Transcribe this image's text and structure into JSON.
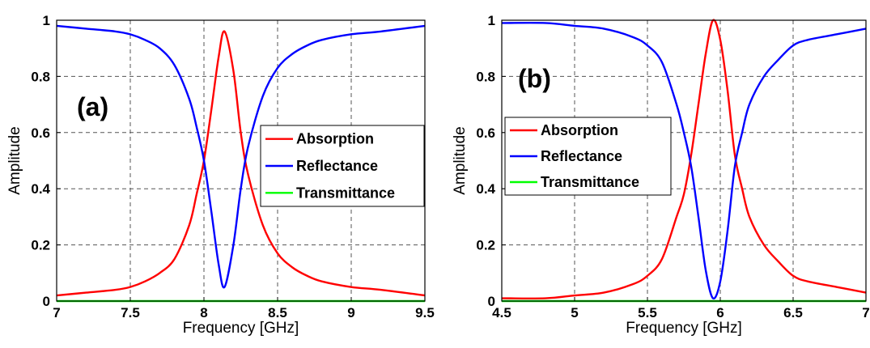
{
  "chart_data": [
    {
      "type": "line",
      "panel_label": "(a)",
      "xlabel": "Frequency [GHz]",
      "ylabel": "Amplitude",
      "xlim": [
        7,
        9.5
      ],
      "ylim": [
        0,
        1
      ],
      "xticks": [
        "7",
        "7.5",
        "8",
        "8.5",
        "9",
        "9.5"
      ],
      "yticks": [
        "0",
        "0.2",
        "0.4",
        "0.6",
        "0.8",
        "1"
      ],
      "grid": true,
      "legend_position": "center-right",
      "series": [
        {
          "name": "Absorption",
          "color": "#ff0000",
          "x": [
            7.0,
            7.2,
            7.4,
            7.5,
            7.6,
            7.7,
            7.8,
            7.9,
            7.95,
            8.0,
            8.05,
            8.1,
            8.14,
            8.2,
            8.25,
            8.3,
            8.4,
            8.5,
            8.6,
            8.7,
            8.8,
            9.0,
            9.2,
            9.5
          ],
          "y": [
            0.02,
            0.03,
            0.04,
            0.05,
            0.07,
            0.1,
            0.15,
            0.27,
            0.38,
            0.5,
            0.68,
            0.87,
            0.96,
            0.82,
            0.6,
            0.45,
            0.27,
            0.17,
            0.12,
            0.09,
            0.07,
            0.05,
            0.04,
            0.02
          ]
        },
        {
          "name": "Reflectance",
          "color": "#0000ff",
          "x": [
            7.0,
            7.2,
            7.4,
            7.5,
            7.6,
            7.7,
            7.8,
            7.9,
            7.95,
            8.0,
            8.05,
            8.1,
            8.14,
            8.2,
            8.25,
            8.3,
            8.4,
            8.5,
            8.6,
            8.7,
            8.8,
            9.0,
            9.2,
            9.5
          ],
          "y": [
            0.98,
            0.97,
            0.96,
            0.95,
            0.93,
            0.9,
            0.84,
            0.72,
            0.62,
            0.5,
            0.32,
            0.13,
            0.05,
            0.2,
            0.4,
            0.55,
            0.73,
            0.83,
            0.88,
            0.91,
            0.93,
            0.95,
            0.96,
            0.98
          ]
        },
        {
          "name": "Transmittance",
          "color": "#00ff00",
          "x": [
            7.0,
            9.5
          ],
          "y": [
            0.0,
            0.0
          ]
        }
      ]
    },
    {
      "type": "line",
      "panel_label": "(b)",
      "xlabel": "Frequency [GHz]",
      "ylabel": "Amplitude",
      "xlim": [
        4.5,
        7
      ],
      "ylim": [
        0,
        1
      ],
      "xticks": [
        "4.5",
        "5",
        "5.5",
        "6",
        "6.5",
        "7"
      ],
      "yticks": [
        "0",
        "0.2",
        "0.4",
        "0.6",
        "0.8",
        "1"
      ],
      "grid": true,
      "legend_position": "center-left",
      "series": [
        {
          "name": "Absorption",
          "color": "#ff0000",
          "x": [
            4.5,
            4.8,
            5.0,
            5.2,
            5.4,
            5.5,
            5.6,
            5.7,
            5.75,
            5.8,
            5.85,
            5.9,
            5.95,
            6.0,
            6.05,
            6.1,
            6.15,
            6.2,
            6.3,
            6.4,
            6.5,
            6.6,
            6.8,
            7.0
          ],
          "y": [
            0.01,
            0.01,
            0.02,
            0.03,
            0.06,
            0.09,
            0.15,
            0.3,
            0.38,
            0.52,
            0.7,
            0.88,
            1.0,
            0.93,
            0.75,
            0.52,
            0.4,
            0.3,
            0.2,
            0.14,
            0.09,
            0.07,
            0.05,
            0.03
          ]
        },
        {
          "name": "Reflectance",
          "color": "#0000ff",
          "x": [
            4.5,
            4.8,
            5.0,
            5.2,
            5.4,
            5.5,
            5.6,
            5.7,
            5.75,
            5.8,
            5.85,
            5.9,
            5.95,
            6.0,
            6.05,
            6.1,
            6.15,
            6.2,
            6.3,
            6.4,
            6.5,
            6.6,
            6.8,
            7.0
          ],
          "y": [
            0.99,
            0.99,
            0.98,
            0.97,
            0.94,
            0.91,
            0.85,
            0.7,
            0.6,
            0.48,
            0.3,
            0.11,
            0.01,
            0.07,
            0.25,
            0.48,
            0.6,
            0.7,
            0.8,
            0.86,
            0.91,
            0.93,
            0.95,
            0.97
          ]
        },
        {
          "name": "Transmittance",
          "color": "#00ff00",
          "x": [
            4.5,
            7.0
          ],
          "y": [
            0.0,
            0.0
          ]
        }
      ]
    }
  ]
}
